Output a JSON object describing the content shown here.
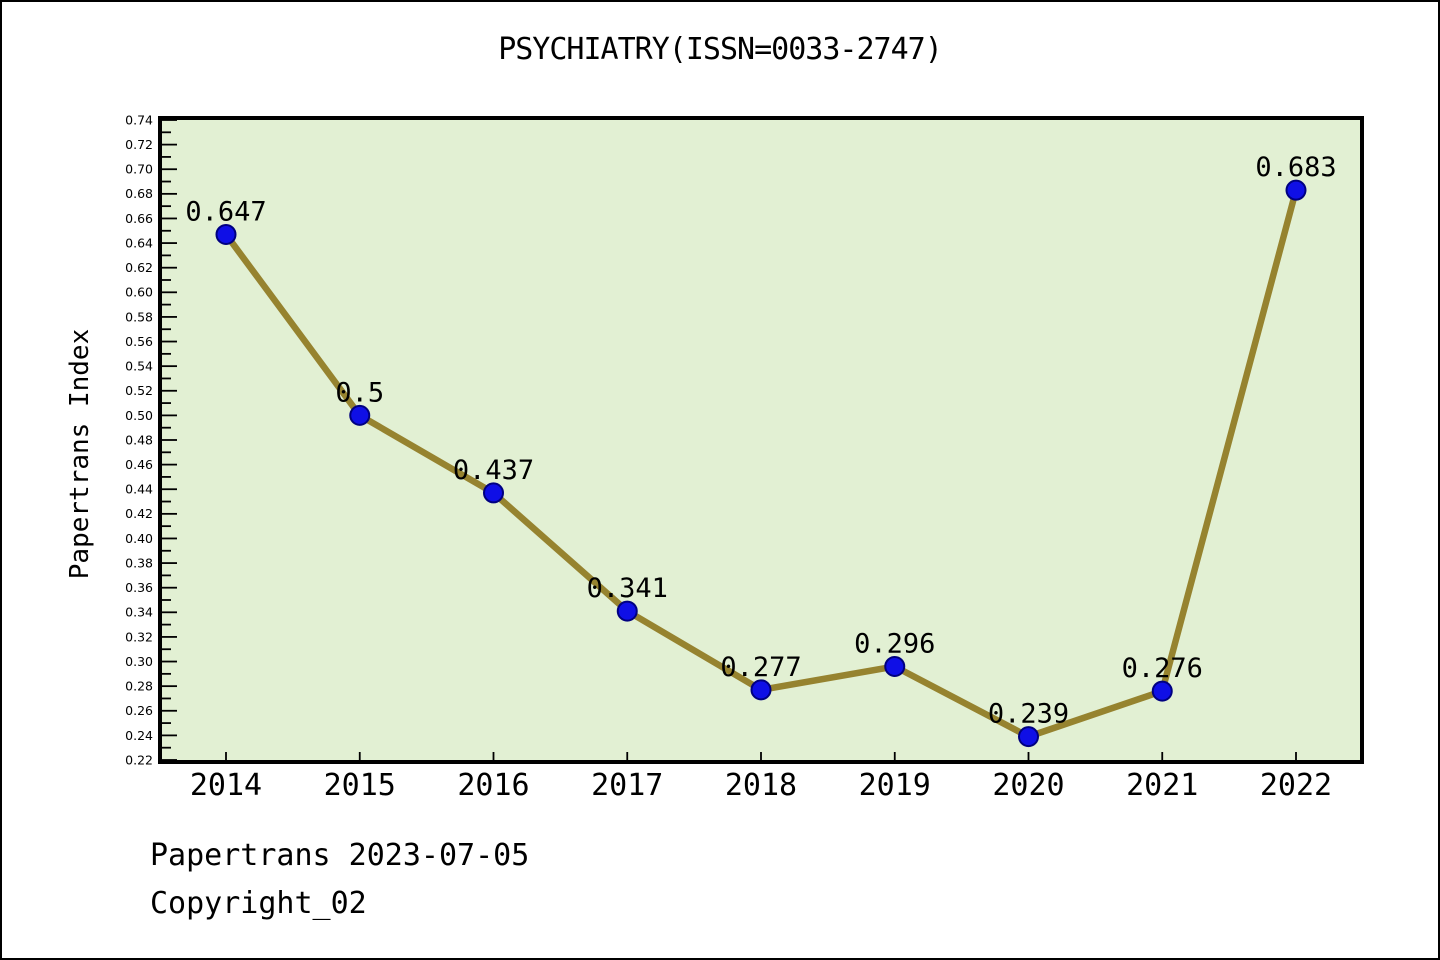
{
  "window": {
    "background": "#ffffff",
    "border_color": "#000000"
  },
  "header": {
    "title": "PSYCHIATRY(ISSN=0033-2747)"
  },
  "footer": {
    "line1": "Papertrans 2023-07-05",
    "line2": "Copyright_02"
  },
  "chart_data": {
    "type": "line",
    "title": "PSYCHIATRY(ISSN=0033-2747)",
    "xlabel": "",
    "ylabel": "Papertrans Index",
    "categories": [
      "2014",
      "2015",
      "2016",
      "2017",
      "2018",
      "2019",
      "2020",
      "2021",
      "2022"
    ],
    "values": [
      0.647,
      0.5,
      0.437,
      0.341,
      0.277,
      0.296,
      0.239,
      0.276,
      0.683
    ],
    "point_labels": [
      "0.647",
      "0.5",
      "0.437",
      "0.341",
      "0.277",
      "0.296",
      "0.239",
      "0.276",
      "0.683"
    ],
    "ylim": [
      0.22,
      0.74
    ],
    "y_major_step": 0.02,
    "y_minor_step": 0.01,
    "grid": false,
    "legend": false,
    "colors": {
      "line": "#96832f",
      "marker_fill": "#0f0fe6",
      "marker_edge": "#000080",
      "plot_background": "#e2f0d3",
      "axis": "#000000",
      "text": "#000000"
    }
  }
}
